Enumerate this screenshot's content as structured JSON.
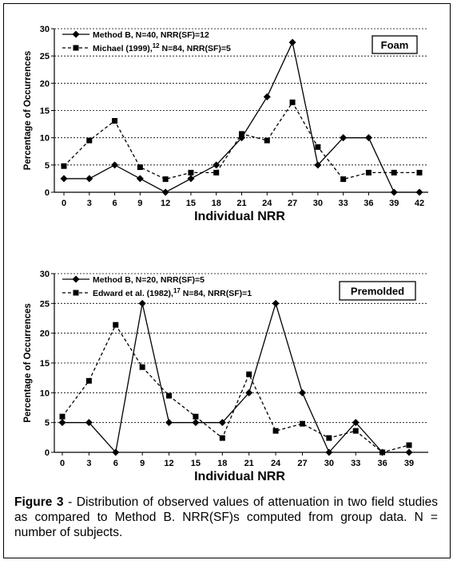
{
  "chart_data": [
    {
      "type": "line",
      "panel_label": "Foam",
      "xlabel": "Individual NRR",
      "ylabel": "Percentage of Occurrences",
      "ylim": [
        0,
        30
      ],
      "yticks": [
        "0",
        "5",
        "10",
        "15",
        "20",
        "25",
        "30"
      ],
      "grid": "horizontal dashed",
      "legend_position": "top-left",
      "categories": [
        "0",
        "3",
        "6",
        "9",
        "12",
        "15",
        "18",
        "21",
        "24",
        "27",
        "30",
        "33",
        "36",
        "39",
        "42"
      ],
      "series": [
        {
          "name": "Method B, N=40, NRR(SF)=12",
          "style": "solid",
          "marker": "diamond",
          "values": [
            2.5,
            2.5,
            5,
            2.5,
            0,
            2.5,
            5,
            10,
            17.5,
            27.5,
            5,
            10,
            10,
            0,
            0
          ]
        },
        {
          "name": "Michael (1999),",
          "name_superscript": "12",
          "name_suffix": " N=84, NRR(SF)=5",
          "style": "dashed",
          "marker": "square",
          "values": [
            4.8,
            9.5,
            13.1,
            4.6,
            2.4,
            3.6,
            3.6,
            10.7,
            9.5,
            16.5,
            8.3,
            2.4,
            3.6,
            3.6,
            3.6
          ]
        }
      ]
    },
    {
      "type": "line",
      "panel_label": "Premolded",
      "xlabel": "Individual NRR",
      "ylabel": "Percentage of Occurrences",
      "ylim": [
        0,
        30
      ],
      "yticks": [
        "0",
        "5",
        "10",
        "15",
        "20",
        "25",
        "30"
      ],
      "grid": "horizontal dashed",
      "legend_position": "top-left",
      "categories": [
        "0",
        "3",
        "6",
        "9",
        "12",
        "15",
        "18",
        "21",
        "24",
        "27",
        "30",
        "33",
        "36",
        "39"
      ],
      "series": [
        {
          "name": "Method B, N=20, NRR(SF)=5",
          "style": "solid",
          "marker": "diamond",
          "values": [
            5,
            5,
            0,
            25,
            5,
            5,
            5,
            10,
            25,
            10,
            0,
            5,
            0,
            0
          ]
        },
        {
          "name": "Edward et al. (1982),",
          "name_superscript": "17",
          "name_suffix": " N=84, NRR(SF)=1",
          "style": "dashed",
          "marker": "square",
          "values": [
            6,
            12,
            21.4,
            14.3,
            9.5,
            6,
            2.4,
            13.1,
            3.6,
            4.8,
            2.4,
            3.6,
            0,
            1.2
          ]
        }
      ]
    }
  ],
  "caption": {
    "label": "Figure 3",
    "text": " - Distribution of observed values of attenuation in two field studies as compared to Method B.  NRR(SF)s computed from group data.  N = number of subjects."
  }
}
